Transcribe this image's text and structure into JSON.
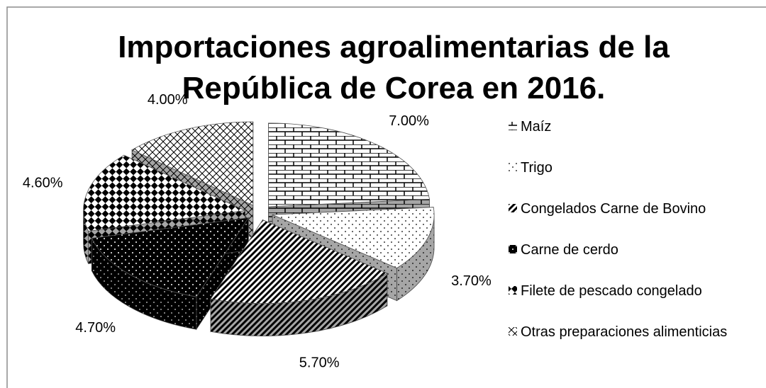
{
  "chart_data": {
    "type": "pie3d",
    "title": "Importaciones agroalimentarias de la República de Corea en 2016.",
    "categories": [
      "Maíz",
      "Trigo",
      "Congelados Carne de Bovino",
      "Carne de cerdo",
      "Filete de pescado congelado",
      "Otras preparaciones alimenticias"
    ],
    "values": [
      7,
      3.7,
      5.7,
      4.7,
      4.6,
      4
    ],
    "value_labels": [
      "7.00%",
      "3.70%",
      "5.70%",
      "4.70%",
      "4.60%",
      "4.00%"
    ],
    "legend": "right"
  }
}
